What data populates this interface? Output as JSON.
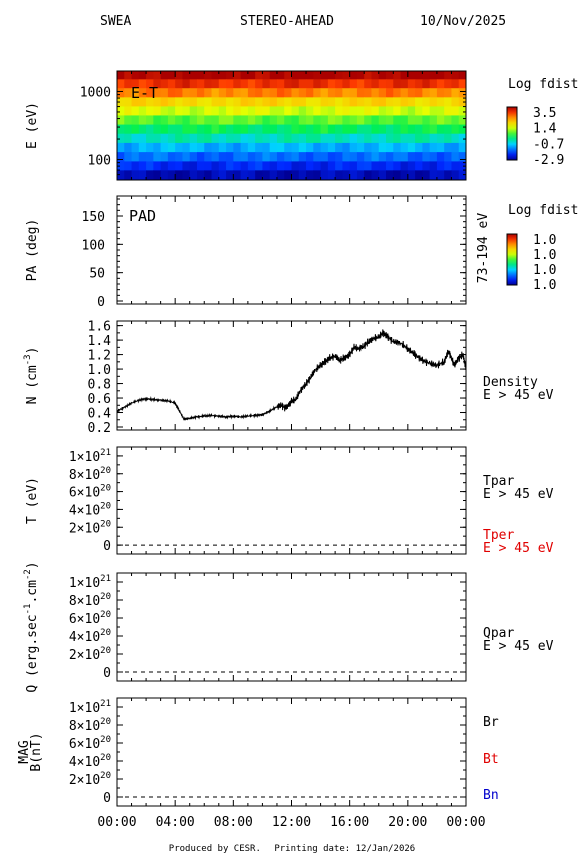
{
  "header": {
    "instrument": "SWEA",
    "spacecraft": "STEREO-AHEAD",
    "date": "10/Nov/2025"
  },
  "footer": {
    "produced_by": "Produced by CESR.",
    "printing_date": "Printing date: 12/Jan/2026"
  },
  "x_axis": {
    "tick_labels": [
      "00:00",
      "04:00",
      "08:00",
      "12:00",
      "16:00",
      "20:00",
      "00:00"
    ],
    "range_hours": [
      0,
      24
    ]
  },
  "colors": {
    "black": "#000000",
    "tper": "#e00000",
    "bt": "#e00000",
    "bn": "#0000cc"
  },
  "chart_data": [
    {
      "type": "heatmap",
      "panel": "energy-time",
      "label": "E-T",
      "ylabel": "E (eV)",
      "yscale": "log",
      "ylim": [
        50,
        2000
      ],
      "y_tick_labels": [
        "1000",
        "100"
      ],
      "colorbar": {
        "title": "Log fdist",
        "labels": [
          "3.5",
          "1.4",
          "-0.7",
          "-2.9"
        ],
        "range": [
          -2.9,
          3.5
        ]
      },
      "energy_bands_eV": [
        1750,
        1300,
        960,
        700,
        520,
        380,
        280,
        205,
        150,
        110,
        80,
        60
      ],
      "band_log_fdist": [
        -2.9,
        -2.3,
        -1.7,
        -1.0,
        -0.4,
        0.2,
        0.7,
        1.2,
        1.8,
        2.3,
        2.8,
        3.3
      ]
    },
    {
      "type": "heatmap",
      "panel": "pitch-angle",
      "label": "PAD",
      "ylabel": "PA (deg)",
      "ylim": [
        0,
        180
      ],
      "y_tick_labels": [
        "150",
        "100",
        "50",
        "0"
      ],
      "right_label": "73-194 eV",
      "colorbar": {
        "title": "Log fdist",
        "labels": [
          "1.0",
          "1.0",
          "1.0",
          "1.0"
        ]
      }
    },
    {
      "type": "line",
      "panel": "density",
      "ylabel": "N (cm",
      "ylabel_sup": "-3",
      "ylabel_end": ")",
      "ylim": [
        0.2,
        1.65
      ],
      "y_tick_labels": [
        "1.6",
        "1.4",
        "1.2",
        "1.0",
        "0.8",
        "0.6",
        "0.4",
        "0.2"
      ],
      "series": [
        {
          "name": "Density",
          "subtitle": "E > 45 eV",
          "x_hours": [
            0,
            0.5,
            1,
            1.5,
            2,
            2.5,
            3,
            3.5,
            4,
            4.3,
            4.6,
            5,
            5.5,
            6,
            6.5,
            7,
            7.5,
            8,
            8.5,
            9,
            9.5,
            10,
            10.5,
            11,
            11.3,
            11.6,
            12,
            12.3,
            12.6,
            13,
            13.3,
            13.6,
            14,
            14.3,
            14.6,
            15,
            15.3,
            15.6,
            16,
            16.3,
            16.6,
            17,
            17.3,
            17.6,
            18,
            18.3,
            18.6,
            19,
            19.5,
            20,
            20.5,
            21,
            21.5,
            22,
            22.5,
            22.8,
            23,
            23.2,
            23.5,
            23.8,
            24
          ],
          "values": [
            0.42,
            0.47,
            0.53,
            0.57,
            0.59,
            0.58,
            0.57,
            0.56,
            0.53,
            0.42,
            0.31,
            0.32,
            0.34,
            0.35,
            0.36,
            0.35,
            0.34,
            0.35,
            0.34,
            0.35,
            0.36,
            0.37,
            0.42,
            0.48,
            0.5,
            0.46,
            0.55,
            0.58,
            0.7,
            0.8,
            0.88,
            0.98,
            1.05,
            1.1,
            1.15,
            1.18,
            1.12,
            1.15,
            1.2,
            1.3,
            1.28,
            1.32,
            1.38,
            1.42,
            1.44,
            1.5,
            1.45,
            1.38,
            1.36,
            1.28,
            1.2,
            1.12,
            1.08,
            1.05,
            1.1,
            1.25,
            1.15,
            1.05,
            1.15,
            1.2,
            1.0
          ]
        }
      ]
    },
    {
      "type": "line",
      "panel": "temperature",
      "ylabel": "T (eV)",
      "ylim": [
        -1e+20,
        1.1e+21
      ],
      "y_tick_labels": [
        {
          "m": "1",
          "e": "21",
          "v": 1e+21
        },
        {
          "m": "8",
          "e": "20",
          "v": 8e+20
        },
        {
          "m": "6",
          "e": "20",
          "v": 6e+20
        },
        {
          "m": "4",
          "e": "20",
          "v": 4e+20
        },
        {
          "m": "2",
          "e": "20",
          "v": 2e+20
        },
        {
          "m": "0",
          "e": "",
          "v": 0
        }
      ],
      "series": [
        {
          "name": "Tpar",
          "subtitle": "E > 45 eV",
          "values": [
            0,
            0
          ]
        },
        {
          "name": "Tper",
          "subtitle": "E > 45 eV",
          "values": [
            0,
            0
          ]
        }
      ]
    },
    {
      "type": "line",
      "panel": "heat-flux",
      "ylabel": "Q (erg.sec",
      "ylabel_sup1": "-1",
      "ylabel_mid": ".cm",
      "ylabel_sup2": "-2",
      "ylabel_end": ")",
      "ylim": [
        -1e+20,
        1.1e+21
      ],
      "y_tick_labels": [
        {
          "m": "1",
          "e": "21",
          "v": 1e+21
        },
        {
          "m": "8",
          "e": "20",
          "v": 8e+20
        },
        {
          "m": "6",
          "e": "20",
          "v": 6e+20
        },
        {
          "m": "4",
          "e": "20",
          "v": 4e+20
        },
        {
          "m": "2",
          "e": "20",
          "v": 2e+20
        },
        {
          "m": "0",
          "e": "",
          "v": 0
        }
      ],
      "series": [
        {
          "name": "Qpar",
          "subtitle": "E > 45 eV",
          "values": [
            0,
            0
          ]
        }
      ]
    },
    {
      "type": "line",
      "panel": "magnetic-field",
      "ylabel": "MAG",
      "ylabel2": "B(nT)",
      "ylim": [
        -1e+20,
        1.1e+21
      ],
      "y_tick_labels": [
        {
          "m": "1",
          "e": "21",
          "v": 1e+21
        },
        {
          "m": "8",
          "e": "20",
          "v": 8e+20
        },
        {
          "m": "6",
          "e": "20",
          "v": 6e+20
        },
        {
          "m": "4",
          "e": "20",
          "v": 4e+20
        },
        {
          "m": "2",
          "e": "20",
          "v": 2e+20
        },
        {
          "m": "0",
          "e": "",
          "v": 0
        }
      ],
      "series": [
        {
          "name": "Br",
          "values": [
            0,
            0
          ]
        },
        {
          "name": "Bt",
          "values": [
            0,
            0
          ]
        },
        {
          "name": "Bn",
          "values": [
            0,
            0
          ]
        }
      ]
    }
  ]
}
